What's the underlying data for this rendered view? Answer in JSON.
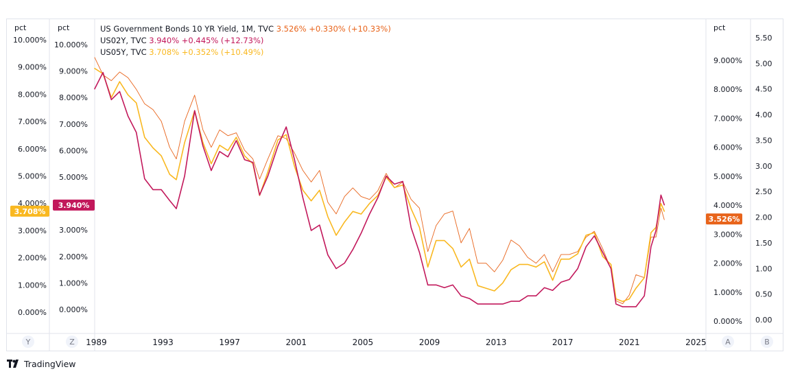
{
  "chart_data": {
    "type": "line",
    "legend": [
      {
        "series": "US10Y",
        "text": "US Government Bonds 10 YR Yield, 1M, TVC",
        "value": "3.526%",
        "change": "+0.330% (+10.33%)",
        "color": "#e8641b"
      },
      {
        "series": "US02Y",
        "text": "US02Y, TVC",
        "value": "3.940%",
        "change": "+0.445% (+12.73%)",
        "color": "#c2185b"
      },
      {
        "series": "US05Y",
        "text": "US05Y, TVC",
        "value": "3.708%",
        "change": "+0.352% (+10.49%)",
        "color": "#f9b820"
      }
    ],
    "x_ticks": [
      "1989",
      "1993",
      "1997",
      "2001",
      "2005",
      "2009",
      "2013",
      "2017",
      "2021",
      "2025"
    ],
    "xlim": [
      1988.9,
      2025.6
    ],
    "axes": {
      "Y": {
        "unit": "pct",
        "ticks": [
          "0.000%",
          "1.000%",
          "2.000%",
          "3.000%",
          "4.000%",
          "5.000%",
          "6.000%",
          "7.000%",
          "8.000%",
          "9.000%",
          "10.000%"
        ],
        "ylim": [
          -0.1,
          10.0
        ]
      },
      "Z": {
        "unit": "pct",
        "ticks": [
          "0.000%",
          "1.000%",
          "2.000%",
          "3.000%",
          "4.000%",
          "5.000%",
          "6.000%",
          "7.000%",
          "8.000%",
          "9.000%",
          "10.000%"
        ],
        "ylim": [
          -0.5,
          10.3
        ]
      },
      "A": {
        "unit": "pct",
        "ticks": [
          "0.000%",
          "1.000%",
          "2.000%",
          "3.000%",
          "4.000%",
          "5.000%",
          "6.000%",
          "7.000%",
          "8.000%",
          "9.000%"
        ],
        "ylim": [
          -0.1,
          9.9
        ]
      },
      "B": {
        "unit": "",
        "ticks": [
          "0.00",
          "0.50",
          "1.00",
          "1.50",
          "2.00",
          "2.50",
          "3.00",
          "3.50",
          "4.00",
          "4.50",
          "5.00",
          "5.50"
        ],
        "ylim": [
          -0.05,
          5.7
        ]
      }
    },
    "axis_buttons": [
      "Y",
      "Z",
      "A",
      "B"
    ],
    "price_tags": [
      {
        "axis": "Y",
        "label": "3.708%",
        "value": 3.708,
        "color": "#f9b820",
        "text_color": "#131722"
      },
      {
        "axis": "Z",
        "label": "3.940%",
        "value": 3.94,
        "color": "#c2185b",
        "text_color": "#ffffff"
      },
      {
        "axis": "A",
        "label": "3.526%",
        "value": 3.526,
        "color": "#e8641b",
        "text_color": "#ffffff"
      }
    ],
    "series": [
      {
        "name": "US10Y",
        "axis": "A",
        "color": "#e8641b",
        "width": 0.9,
        "x": [
          1988.9,
          1989.4,
          1989.9,
          1990.4,
          1990.9,
          1991.4,
          1991.9,
          1992.4,
          1992.9,
          1993.4,
          1993.8,
          1994.3,
          1994.9,
          1995.4,
          1995.9,
          1996.4,
          1996.9,
          1997.4,
          1997.9,
          1998.4,
          1998.8,
          1999.3,
          1999.9,
          2000.4,
          2000.9,
          2001.4,
          2001.9,
          2002.4,
          2002.9,
          2003.4,
          2003.9,
          2004.4,
          2004.9,
          2005.4,
          2005.9,
          2006.4,
          2006.9,
          2007.4,
          2007.9,
          2008.4,
          2008.9,
          2009.4,
          2009.9,
          2010.4,
          2010.9,
          2011.4,
          2011.9,
          2012.4,
          2012.9,
          2013.4,
          2013.9,
          2014.4,
          2014.9,
          2015.4,
          2015.9,
          2016.4,
          2016.9,
          2017.4,
          2017.9,
          2018.4,
          2018.9,
          2019.4,
          2019.9,
          2020.2,
          2020.6,
          2021.0,
          2021.4,
          2021.9,
          2022.3,
          2022.6,
          2022.9,
          2023.1
        ],
        "y": [
          9.1,
          8.5,
          8.3,
          8.6,
          8.4,
          8.0,
          7.5,
          7.3,
          6.9,
          6.0,
          5.6,
          6.9,
          7.8,
          6.6,
          6.0,
          6.6,
          6.4,
          6.5,
          5.9,
          5.6,
          4.9,
          5.6,
          6.4,
          6.3,
          5.8,
          5.2,
          4.8,
          5.2,
          4.1,
          3.7,
          4.3,
          4.6,
          4.3,
          4.2,
          4.5,
          5.1,
          4.6,
          4.8,
          4.2,
          3.9,
          2.4,
          3.3,
          3.7,
          3.8,
          2.7,
          3.2,
          2.0,
          2.0,
          1.7,
          2.1,
          2.8,
          2.6,
          2.2,
          2.0,
          2.3,
          1.7,
          2.3,
          2.3,
          2.4,
          2.9,
          3.1,
          2.5,
          1.8,
          0.7,
          0.6,
          0.9,
          1.6,
          1.5,
          2.9,
          2.9,
          3.9,
          3.5
        ]
      },
      {
        "name": "US05Y",
        "axis": "Z",
        "color": "#f9b820",
        "width": 1.6,
        "x": [
          1988.9,
          1989.4,
          1989.9,
          1990.4,
          1990.9,
          1991.4,
          1991.9,
          1992.4,
          1992.9,
          1993.4,
          1993.8,
          1994.3,
          1994.9,
          1995.4,
          1995.9,
          1996.4,
          1996.9,
          1997.4,
          1997.9,
          1998.4,
          1998.8,
          1999.3,
          1999.9,
          2000.4,
          2000.9,
          2001.4,
          2001.9,
          2002.4,
          2002.9,
          2003.4,
          2003.9,
          2004.4,
          2004.9,
          2005.4,
          2005.9,
          2006.4,
          2006.9,
          2007.4,
          2007.9,
          2008.4,
          2008.9,
          2009.4,
          2009.9,
          2010.4,
          2010.9,
          2011.4,
          2011.9,
          2012.4,
          2012.9,
          2013.4,
          2013.9,
          2014.4,
          2014.9,
          2015.4,
          2015.9,
          2016.4,
          2016.9,
          2017.4,
          2017.9,
          2018.4,
          2018.9,
          2019.4,
          2019.9,
          2020.2,
          2020.6,
          2021.0,
          2021.4,
          2021.9,
          2022.3,
          2022.6,
          2022.9,
          2023.1
        ],
        "y": [
          9.1,
          8.9,
          8.0,
          8.6,
          8.1,
          7.8,
          6.5,
          6.1,
          5.8,
          5.1,
          4.9,
          6.3,
          7.5,
          6.3,
          5.5,
          6.2,
          6.0,
          6.5,
          5.8,
          5.5,
          4.3,
          5.2,
          6.4,
          6.6,
          5.4,
          4.5,
          4.1,
          4.5,
          3.5,
          2.8,
          3.3,
          3.7,
          3.6,
          4.0,
          4.3,
          5.0,
          4.6,
          4.7,
          3.8,
          3.1,
          1.6,
          2.6,
          2.6,
          2.3,
          1.6,
          1.9,
          0.9,
          0.8,
          0.7,
          1.0,
          1.5,
          1.7,
          1.7,
          1.6,
          1.8,
          1.1,
          1.9,
          1.9,
          2.1,
          2.8,
          2.9,
          2.0,
          1.7,
          0.4,
          0.3,
          0.4,
          0.8,
          1.2,
          2.9,
          3.1,
          4.0,
          3.708
        ]
      },
      {
        "name": "US02Y",
        "axis": "Y",
        "color": "#c2185b",
        "width": 1.6,
        "x": [
          1988.9,
          1989.4,
          1989.9,
          1990.4,
          1990.9,
          1991.4,
          1991.9,
          1992.4,
          1992.9,
          1993.4,
          1993.8,
          1994.3,
          1994.9,
          1995.4,
          1995.9,
          1996.4,
          1996.9,
          1997.4,
          1997.9,
          1998.4,
          1998.8,
          1999.3,
          1999.9,
          2000.4,
          2000.9,
          2001.4,
          2001.9,
          2002.4,
          2002.9,
          2003.4,
          2003.9,
          2004.4,
          2004.9,
          2005.4,
          2005.9,
          2006.4,
          2006.9,
          2007.4,
          2007.9,
          2008.4,
          2008.9,
          2009.4,
          2009.9,
          2010.4,
          2010.9,
          2011.4,
          2011.9,
          2012.4,
          2012.9,
          2013.4,
          2013.9,
          2014.4,
          2014.9,
          2015.4,
          2015.9,
          2016.4,
          2016.9,
          2017.4,
          2017.9,
          2018.4,
          2018.9,
          2019.4,
          2019.9,
          2020.2,
          2020.6,
          2021.0,
          2021.4,
          2021.9,
          2022.3,
          2022.6,
          2022.9,
          2023.1
        ],
        "y": [
          8.2,
          8.8,
          7.8,
          8.1,
          7.2,
          6.6,
          4.9,
          4.5,
          4.5,
          4.1,
          3.8,
          5.0,
          7.4,
          6.1,
          5.2,
          5.9,
          5.7,
          6.3,
          5.6,
          5.5,
          4.3,
          5.0,
          6.1,
          6.8,
          5.6,
          4.2,
          3.0,
          3.2,
          2.1,
          1.6,
          1.8,
          2.3,
          2.9,
          3.6,
          4.2,
          5.0,
          4.7,
          4.8,
          3.1,
          2.2,
          1.0,
          1.0,
          0.9,
          1.0,
          0.6,
          0.5,
          0.3,
          0.3,
          0.3,
          0.3,
          0.4,
          0.4,
          0.6,
          0.6,
          0.9,
          0.8,
          1.1,
          1.2,
          1.6,
          2.4,
          2.8,
          2.2,
          1.6,
          0.3,
          0.2,
          0.2,
          0.2,
          0.6,
          2.4,
          3.0,
          4.3,
          3.94
        ]
      }
    ]
  },
  "brand": {
    "name": "TradingView"
  }
}
